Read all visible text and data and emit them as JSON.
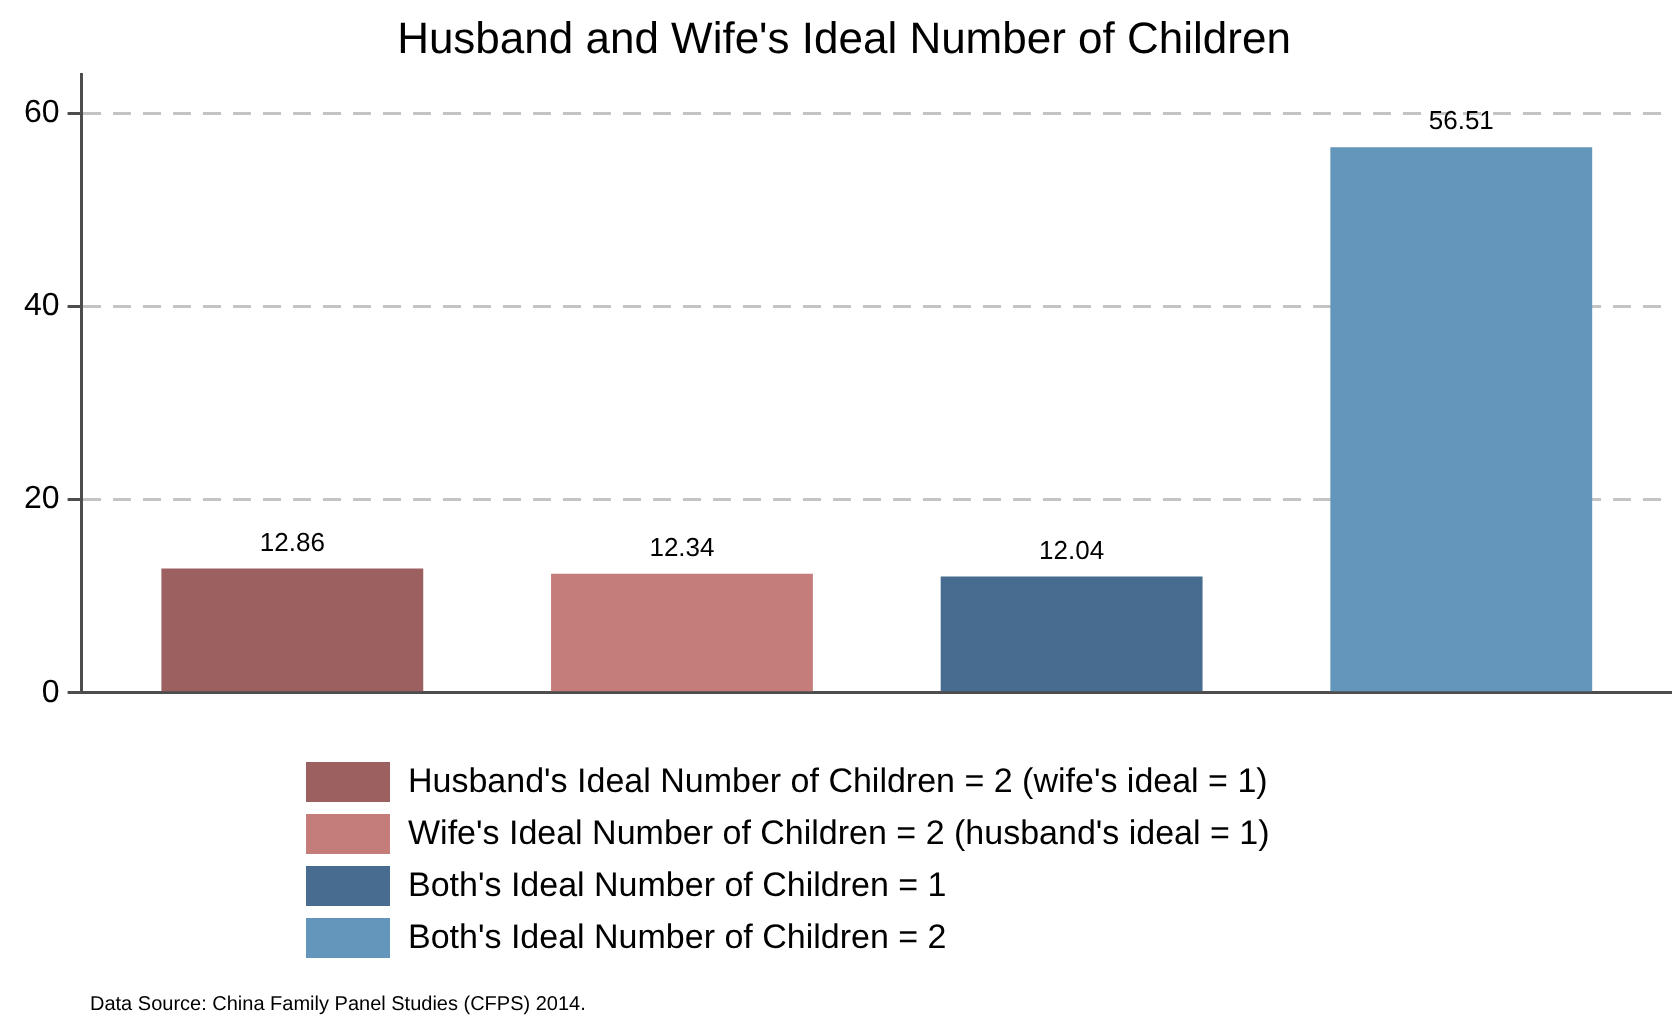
{
  "chart_data": {
    "type": "bar",
    "title": "Husband and Wife's Ideal Number of Children",
    "categories": [
      null
    ],
    "series": [
      {
        "name": "Husband's Ideal Number of Children = 2 (wife's ideal = 1)",
        "color": "#9c6060",
        "values": [
          12.86
        ]
      },
      {
        "name": "Wife's Ideal Number of Children = 2 (husband's ideal = 1)",
        "color": "#c47d7b",
        "values": [
          12.34
        ]
      },
      {
        "name": "Both's Ideal Number of Children = 1",
        "color": "#476c90",
        "values": [
          12.04
        ]
      },
      {
        "name": "Both's Ideal Number of Children = 2",
        "color": "#6495ba",
        "values": [
          56.51
        ]
      }
    ],
    "ylim": [
      0,
      64
    ],
    "yticks": [
      0,
      20,
      40,
      60
    ],
    "grid": "y",
    "legend": "bottom",
    "data_labels": true,
    "tick_labels": "y",
    "annotations": [
      "Data Source: China Family Panel Studies (CFPS) 2014."
    ]
  }
}
